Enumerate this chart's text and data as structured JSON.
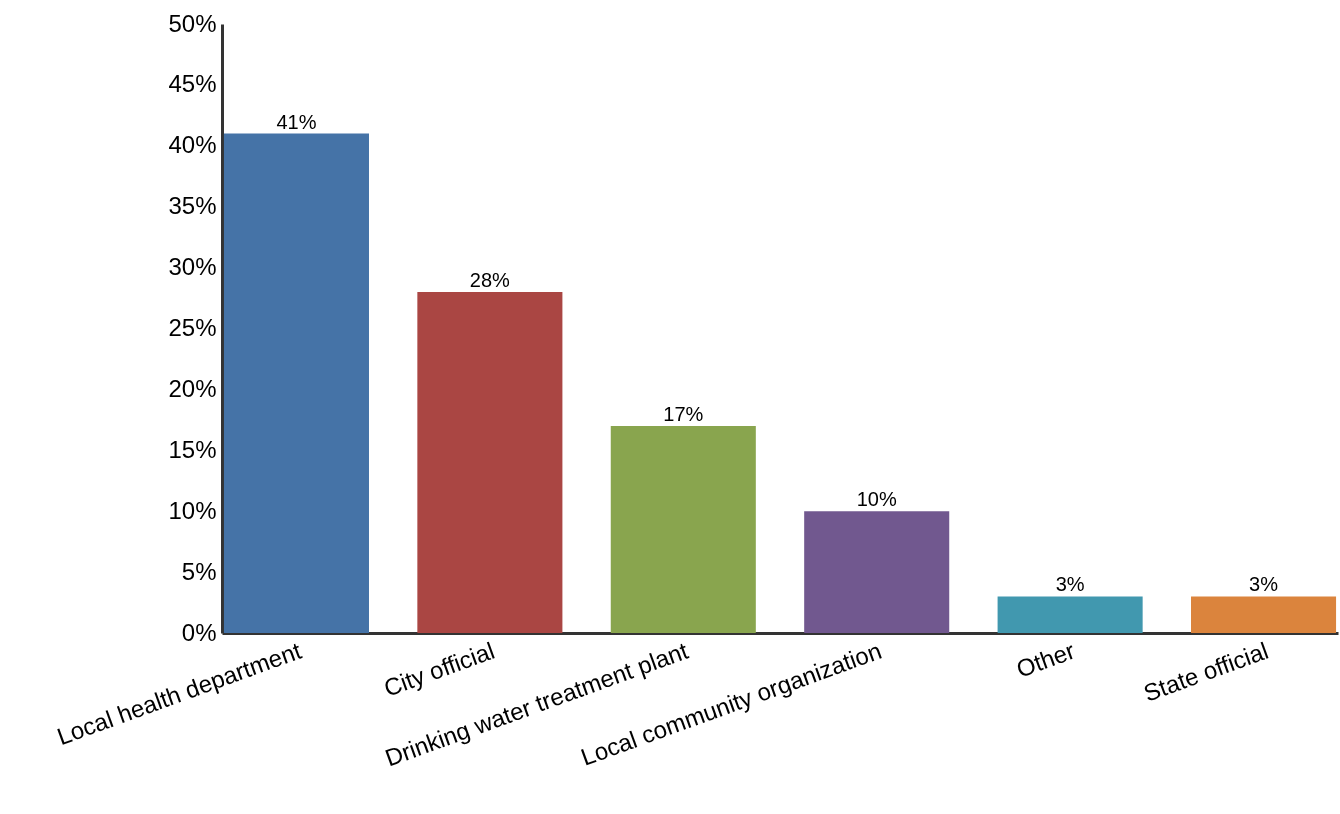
{
  "chart_data": {
    "type": "bar",
    "categories": [
      "Local health department",
      "City official",
      "Drinking water treatment plant",
      "Local community organization",
      "Other",
      "State official"
    ],
    "values": [
      41,
      28,
      17,
      10,
      3,
      3
    ],
    "colors": [
      "#4573a7",
      "#aa4643",
      "#89a54e",
      "#71588f",
      "#4198af",
      "#db843d"
    ],
    "value_labels": [
      "41%",
      "28%",
      "17%",
      "10%",
      "3%",
      "3%"
    ],
    "ylim": [
      0,
      50
    ],
    "yticks": [
      {
        "value": 0,
        "label": "0%"
      },
      {
        "value": 5,
        "label": "5%"
      },
      {
        "value": 10,
        "label": "10%"
      },
      {
        "value": 15,
        "label": "15%"
      },
      {
        "value": 20,
        "label": "20%"
      },
      {
        "value": 25,
        "label": "25%"
      },
      {
        "value": 30,
        "label": "30%"
      },
      {
        "value": 35,
        "label": "35%"
      },
      {
        "value": 40,
        "label": "40%"
      },
      {
        "value": 45,
        "label": "45%"
      },
      {
        "value": 50,
        "label": "50%"
      }
    ],
    "grid": false
  }
}
